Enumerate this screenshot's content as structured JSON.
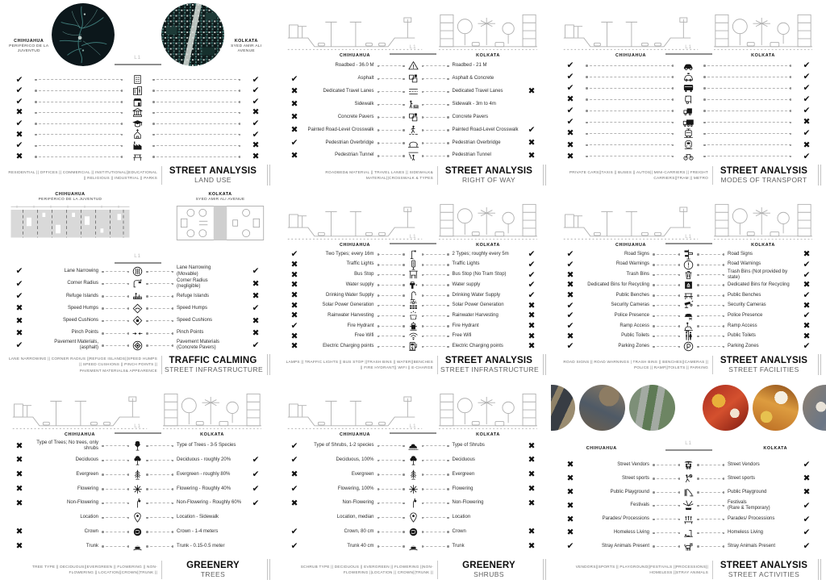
{
  "document_title": "Street Analysis comparison poster — Chihuahua vs Kolkata",
  "level_label": "L1",
  "palette": {
    "ink": "#111111",
    "gray_label": "#bdbdbd",
    "caption": "#6e6e6e",
    "sketch": "#b0b0b0",
    "map_teal": "#3e7a78",
    "map_dark": "#0c171b"
  },
  "glyphs": {
    "check": "✔",
    "cross": "✖",
    "none": ""
  },
  "panels": [
    {
      "id": "land-use",
      "header": {
        "type": "maps",
        "left_city": "CHIHUAHUA",
        "left_sub": "PERIFÉRICO DE LA JUVENTUD",
        "right_city": "KOLKATA",
        "right_sub": "SYED AMIR ALI AVENUE",
        "left_graphic": "chihuahua-street-network-map",
        "right_graphic": "kolkata-building-footprint-map"
      },
      "rows": [
        {
          "l": "check",
          "icon": "residential",
          "r": "check"
        },
        {
          "l": "check",
          "icon": "offices",
          "r": "check"
        },
        {
          "l": "check",
          "icon": "commercial",
          "r": "check"
        },
        {
          "l": "cross",
          "icon": "institutional",
          "r": "cross"
        },
        {
          "l": "check",
          "icon": "educational",
          "r": "check"
        },
        {
          "l": "cross",
          "icon": "religious",
          "r": "check"
        },
        {
          "l": "check",
          "icon": "industrial",
          "r": "cross"
        },
        {
          "l": "cross",
          "icon": "parks",
          "r": "cross"
        }
      ],
      "caption": "RESIDENTIAL || OFFICES || COMMERCIAL || INSTITUTIONAL||EDUCATIONAL || RELIGIOUS || INDUSTRIAL || PARKS",
      "title": "STREET ANALYSIS",
      "subtitle": "LAND USE"
    },
    {
      "id": "right-of-way",
      "header": {
        "type": "sections",
        "left_city": "CHIHUAHUA",
        "right_city": "KOLKATA",
        "left_graphic": "chihuahua-street-section",
        "right_graphic": "kolkata-street-section"
      },
      "rows": [
        {
          "l": "none",
          "ll": "Roadbed - 36.0 M",
          "icon": "roadbed",
          "rl": "Roadbed - 21 M",
          "r": "none"
        },
        {
          "l": "check",
          "ll": "Asphalt",
          "icon": "asphalt",
          "rl": "Asphalt & Concrete",
          "r": "none"
        },
        {
          "l": "cross",
          "ll": "Dedicated Travel Lanes",
          "icon": "travel-lanes",
          "rl": "Dedicated Travel Lanes",
          "r": "cross"
        },
        {
          "l": "cross",
          "ll": "Sidewalk",
          "icon": "sidewalk",
          "rl": "Sidewalk - 3m to 4m",
          "r": "none"
        },
        {
          "l": "cross",
          "ll": "Concrete Pavers",
          "icon": "concrete-pavers",
          "rl": "Concrete Pavers",
          "r": "none"
        },
        {
          "l": "cross",
          "ll": "Painted Road-Level Crosswalk",
          "icon": "crosswalk",
          "rl": "Painted Road-Level Crosswalk",
          "r": "check"
        },
        {
          "l": "check",
          "ll": "Pedestrian Overbridge",
          "icon": "overbridge",
          "rl": "Pedestrian Overbridge",
          "r": "cross"
        },
        {
          "l": "cross",
          "ll": "Pedestrian Tunnel",
          "icon": "tunnel",
          "rl": "Pedestrian Tunnel",
          "r": "cross"
        }
      ],
      "caption": "ROADBED& MATERIAL || TRAVEL LANES || SIDEWALK& MATERIAL||CROSSWALK & TYPES",
      "title": "STREET ANALYSIS",
      "subtitle": "RIGHT OF WAY"
    },
    {
      "id": "modes-of-transport",
      "header": {
        "type": "sections",
        "left_city": "CHIHUAHUA",
        "right_city": "KOLKATA",
        "left_graphic": "chihuahua-street-section",
        "right_graphic": "kolkata-street-section"
      },
      "rows": [
        {
          "l": "check",
          "icon": "private-car",
          "r": "check"
        },
        {
          "l": "check",
          "icon": "taxi",
          "r": "check"
        },
        {
          "l": "check",
          "icon": "bus",
          "r": "check"
        },
        {
          "l": "cross",
          "icon": "auto-rickshaw",
          "r": "check"
        },
        {
          "l": "check",
          "icon": "mini-carrier",
          "r": "check"
        },
        {
          "l": "check",
          "icon": "freight-carrier",
          "r": "cross"
        },
        {
          "l": "cross",
          "icon": "tram",
          "r": "check"
        },
        {
          "l": "cross",
          "icon": "metro",
          "r": "cross"
        },
        {
          "l": "cross",
          "icon": "bicycle",
          "r": "check"
        }
      ],
      "caption": "PRIVATE CARS||TAXIS || BUSES || AUTOS|| MINI-CARRIERS || FREIGHT CARRIERS||TRAM || METRO",
      "title": "STREET ANALYSIS",
      "subtitle": "MODES OF TRANSPORT"
    },
    {
      "id": "traffic-calming",
      "header": {
        "type": "plans",
        "left_city": "CHIHUAHUA",
        "left_sub": "PERIFÉRICO DE LA JUVENTUD",
        "right_city": "KOLKATA",
        "right_sub": "SYED AMIR ALI AVENUE",
        "left_graphic": "chihuahua-street-plan",
        "right_graphic": "kolkata-street-plan"
      },
      "rows": [
        {
          "l": "check",
          "ll": "Lane Narrowing",
          "icon": "lane-narrowing",
          "rl": "Lane Narrowing\n(Movable)",
          "r": "check"
        },
        {
          "l": "check",
          "ll": "Corner Radius",
          "icon": "corner-radius",
          "rl": "Corner Radius\n(negligible)",
          "r": "cross"
        },
        {
          "l": "check",
          "ll": "Refuge Islands",
          "icon": "refuge-islands",
          "rl": "Refuge Islands",
          "r": "cross"
        },
        {
          "l": "cross",
          "ll": "Speed Humps",
          "icon": "speed-humps",
          "rl": "Speed Humps",
          "r": "check"
        },
        {
          "l": "cross",
          "ll": "Speed Cushions",
          "icon": "speed-cushions",
          "rl": "Speed Cushions",
          "r": "cross"
        },
        {
          "l": "cross",
          "ll": "Pinch Points",
          "icon": "pinch-points",
          "rl": "Pinch Points",
          "r": "cross"
        },
        {
          "l": "check",
          "ll": "Pavement Materials,\n(asphalt)",
          "icon": "pavement-materials",
          "rl": "Pavement Materials\n(Concrete Pavers)",
          "r": "check"
        }
      ],
      "caption": "LANE NARROWING || CORNER RADIUS ||REFUGE ISLANDS||SPEED HUMPS || SPEED CUSHIONS || PINCH POINTS ||\nPAVEMENT MATERIALS& APPEARENCE",
      "title": "TRAFFIC CALMING",
      "subtitle": "STREET INFRASTRUCTURE"
    },
    {
      "id": "street-infrastructure",
      "header": {
        "type": "sections",
        "left_city": "CHIHUAHUA",
        "right_city": "KOLKATA",
        "left_graphic": "chihuahua-street-section",
        "right_graphic": "kolkata-street-section"
      },
      "rows": [
        {
          "l": "check",
          "ll": "Two Types; every 16m",
          "icon": "street-lamp",
          "rl": "2 Types; roughly every 5m",
          "r": "check"
        },
        {
          "l": "cross",
          "ll": "Traffic Lights",
          "icon": "traffic-light",
          "rl": "Traffic Lights",
          "r": "check"
        },
        {
          "l": "cross",
          "ll": "Bus Stop",
          "icon": "bus-stop",
          "rl": "Bus Stop (No Tram Stop)",
          "r": "check"
        },
        {
          "l": "cross",
          "ll": "Water supply",
          "icon": "water-supply",
          "rl": "Water supply",
          "r": "check"
        },
        {
          "l": "cross",
          "ll": "Drinking Water Supply",
          "icon": "drinking-water",
          "rl": "Drinking Water Supply",
          "r": "check"
        },
        {
          "l": "cross",
          "ll": "Solar Power Generation",
          "icon": "solar-power",
          "rl": "Solar Power Generation",
          "r": "cross"
        },
        {
          "l": "cross",
          "ll": "Rainwater Harvesting",
          "icon": "rainwater",
          "rl": "Rainwater Harvesting",
          "r": "cross"
        },
        {
          "l": "check",
          "ll": "Fire Hydrant",
          "icon": "fire-hydrant",
          "rl": "Fire Hydrant",
          "r": "cross"
        },
        {
          "l": "cross",
          "ll": "Free Wifi",
          "icon": "wifi",
          "rl": "Free Wifi",
          "r": "cross"
        },
        {
          "l": "cross",
          "ll": "Electric Charging points",
          "icon": "ev-charging",
          "rl": "Electric Charging points",
          "r": "cross"
        }
      ],
      "caption": "LAMPS || TRAFFIC LIGHTS || BUS STOP ||TRASH BINS || WATER||BENCHES || FIRE HYDRANT|| WIFI || E-CHARGE",
      "title": "STREET ANALYSIS",
      "subtitle": "STREET INFRASTRUCTURE"
    },
    {
      "id": "street-facilities",
      "header": {
        "type": "sections",
        "left_city": "CHIHUAHUA",
        "right_city": "KOLKATA",
        "left_graphic": "chihuahua-street-section",
        "right_graphic": "kolkata-street-section"
      },
      "rows": [
        {
          "l": "check",
          "ll": "Road Signs",
          "icon": "road-signs",
          "rl": "Road Signs",
          "r": "cross"
        },
        {
          "l": "check",
          "ll": "Road Warnings",
          "icon": "road-warnings",
          "rl": "Road Warnings",
          "r": "check"
        },
        {
          "l": "cross",
          "ll": "Trash Bins",
          "icon": "trash-bin",
          "rl": "Trash Bins (Not provided by\nstate)",
          "r": "check"
        },
        {
          "l": "cross",
          "ll": "Dedicated Bins for Recycling",
          "icon": "recycling-bin",
          "rl": "Dedicated Bins for Recycling",
          "r": "cross"
        },
        {
          "l": "cross",
          "ll": "Public Benches",
          "icon": "public-bench",
          "rl": "Public Benches",
          "r": "check"
        },
        {
          "l": "check",
          "ll": "Security Cameras",
          "icon": "security-camera",
          "rl": "Security Cameras",
          "r": "cross"
        },
        {
          "l": "check",
          "ll": "Police Presence",
          "icon": "police",
          "rl": "Police Presence",
          "r": "check"
        },
        {
          "l": "check",
          "ll": "Ramp Access",
          "icon": "ramp-access",
          "rl": "Ramp Access",
          "r": "cross"
        },
        {
          "l": "cross",
          "ll": "Public Toilets",
          "icon": "public-toilets",
          "rl": "Public Toilets",
          "r": "cross"
        },
        {
          "l": "check",
          "ll": "Parking Zones",
          "icon": "parking",
          "rl": "Parking Zones",
          "r": "check"
        }
      ],
      "caption": "ROAD SIGNS || ROAD WARNINGS | TRASH BINS || BENCHES||CAMERAS || POLICE || RAMP||TOILETS || PARKING",
      "title": "STREET ANALYSIS",
      "subtitle": "STREET FACILITIES"
    },
    {
      "id": "greenery-trees",
      "header": {
        "type": "sections",
        "left_city": "CHIHUAHUA",
        "right_city": "KOLKATA",
        "left_graphic": "chihuahua-street-section",
        "right_graphic": "kolkata-street-section"
      },
      "rows": [
        {
          "l": "cross",
          "ll": "Type of Trees; No trees, only shrubs",
          "icon": "tree",
          "rl": "Type of Trees - 3-5 Species",
          "r": "none"
        },
        {
          "l": "cross",
          "ll": "Deciduous",
          "icon": "deciduous-tree",
          "rl": "Deciduous - roughly 20%",
          "r": "check"
        },
        {
          "l": "cross",
          "ll": "Evergreen",
          "icon": "evergreen-tree",
          "rl": "Evergreen - roughly 80%",
          "r": "check"
        },
        {
          "l": "cross",
          "ll": "Flowering",
          "icon": "flowering-plant",
          "rl": "Flowering - Roughly 40%",
          "r": "check"
        },
        {
          "l": "cross",
          "ll": "Non-Flowering",
          "icon": "non-flowering-plant",
          "rl": "Non-Flowering - Roughly 60%",
          "r": "check"
        },
        {
          "l": "none",
          "ll": "Location",
          "icon": "location-pin",
          "rl": "Location - Sidewalk",
          "r": "none"
        },
        {
          "l": "cross",
          "ll": "Crown",
          "icon": "tree-crown",
          "rl": "Crown - 1-4 meters",
          "r": "none"
        },
        {
          "l": "cross",
          "ll": "Trunk",
          "icon": "tree-trunk",
          "rl": "Trunk - 0.15-0.5 meter",
          "r": "none"
        }
      ],
      "caption": "TREE TYPE || DECIDUOUS||EVERGREEN || FLOWERING || NON-FLOWERING || LOCATION||CROWN||TRUNK ||",
      "title": "GREENERY",
      "subtitle": "TREES"
    },
    {
      "id": "greenery-shrubs",
      "header": {
        "type": "sections",
        "left_city": "CHIHUAHUA",
        "right_city": "KOLKATA",
        "left_graphic": "chihuahua-street-section",
        "right_graphic": "kolkata-street-section"
      },
      "rows": [
        {
          "l": "check",
          "ll": "Type of Shrubs, 1-2 species",
          "icon": "shrub",
          "rl": "Type of Shrubs",
          "r": "cross"
        },
        {
          "l": "check",
          "ll": "Deciduous, 100%",
          "icon": "deciduous-tree",
          "rl": "Deciduous",
          "r": "cross"
        },
        {
          "l": "cross",
          "ll": "Evergreen",
          "icon": "evergreen-tree",
          "rl": "Evergreen",
          "r": "cross"
        },
        {
          "l": "check",
          "ll": "Flowering, 100%",
          "icon": "flowering-plant",
          "rl": "Flowering",
          "r": "cross"
        },
        {
          "l": "cross",
          "ll": "Non-Flowering",
          "icon": "non-flowering-plant",
          "rl": "Non-Flowering",
          "r": "cross"
        },
        {
          "l": "none",
          "ll": "Location, median",
          "icon": "location-pin",
          "rl": "Location",
          "r": "none"
        },
        {
          "l": "check",
          "ll": "Crown, 80 cm",
          "icon": "tree-crown",
          "rl": "Crown",
          "r": "cross"
        },
        {
          "l": "check",
          "ll": "Trunk 40 cm",
          "icon": "tree-trunk",
          "rl": "Trunk",
          "r": "cross"
        }
      ],
      "caption": "SCHRUB TYPE || DECIDUOUS || EVERGREEN || FLOWERING ||NON-FLOWERING ||LOCATION || CROWN||TRUNK ||",
      "title": "GREENERY",
      "subtitle": "SHRUBS"
    },
    {
      "id": "street-activities",
      "header": {
        "type": "photos",
        "left_city": "CHIHUAHUA",
        "right_city": "KOLKATA",
        "photos": [
          "chihuahua-aerial-interchange-photo",
          "chihuahua-aerial-overpass-photo",
          "chihuahua-aerial-boulevard-photo",
          "kolkata-festival-crowd-photo",
          "kolkata-market-stall-photo",
          "kolkata-street-market-photo"
        ]
      },
      "rows": [
        {
          "l": "cross",
          "ll": "Street Vendors",
          "icon": "street-vendor",
          "rl": "Street Vendors",
          "r": "check"
        },
        {
          "l": "cross",
          "ll": "Street sports",
          "icon": "street-sports",
          "rl": "Street sports",
          "r": "cross"
        },
        {
          "l": "cross",
          "ll": "Public Playground",
          "icon": "playground",
          "rl": "Public Playground",
          "r": "cross"
        },
        {
          "l": "cross",
          "ll": "Festivals",
          "icon": "festival",
          "rl": "Festivals\n(Rare & Temporary)",
          "r": "check"
        },
        {
          "l": "cross",
          "ll": "Parades/ Processions",
          "icon": "parade",
          "rl": "Parades/ Processions",
          "r": "check"
        },
        {
          "l": "cross",
          "ll": "Homeless Living",
          "icon": "homeless",
          "rl": "Homeless Living",
          "r": "check"
        },
        {
          "l": "check",
          "ll": "Stray Animals Present",
          "icon": "stray-animal",
          "rl": "Stray Animals Present",
          "r": "check"
        }
      ],
      "caption": "VENDORS||SPORTS || PLAYGROUND||FESTIVALS ||PROCESSIONS|| HOMELESS ||STRAY ANIMALS",
      "title": "STREET ANALYSIS",
      "subtitle": "STREET ACTIVITIES"
    }
  ]
}
